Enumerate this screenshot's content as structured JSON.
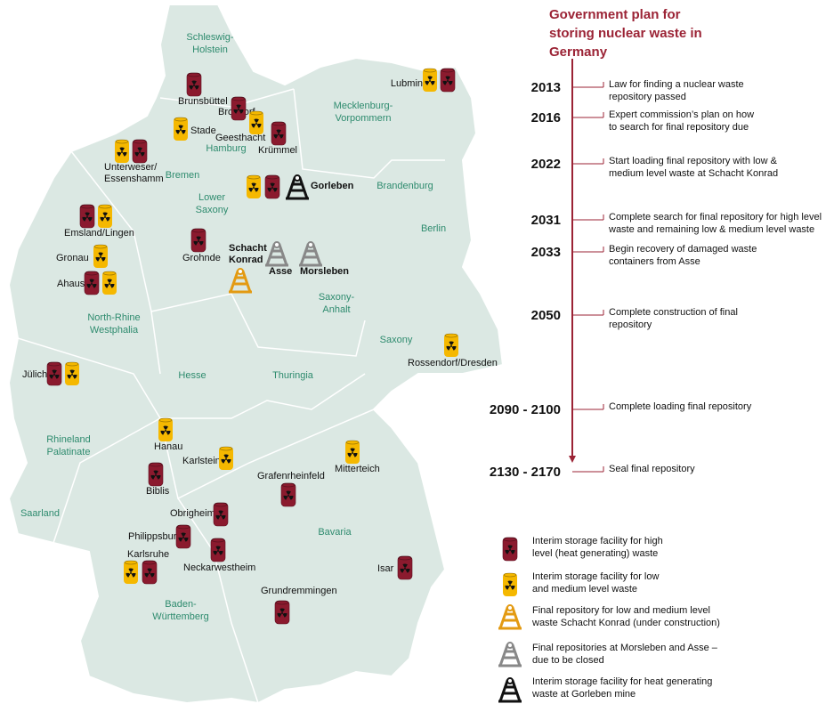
{
  "title": {
    "lines": [
      "Government plan for",
      "storing nuclear waste in",
      "Germany"
    ]
  },
  "timeline": [
    {
      "year": "2013",
      "lines": [
        "Law for finding a nuclear waste",
        "repository passed"
      ]
    },
    {
      "year": "2016",
      "lines": [
        "Expert commission’s plan on how",
        "to search for final repository due"
      ]
    },
    {
      "year": "2022",
      "lines": [
        "Start loading final repository with low &",
        "medium level waste at Schacht Konrad"
      ]
    },
    {
      "year": "2031",
      "lines": [
        "Complete search for final repository for high level",
        "waste and remaining low & medium level waste"
      ]
    },
    {
      "year": "2033",
      "lines": [
        "Begin recovery of damaged waste",
        "containers from Asse"
      ]
    },
    {
      "year": "2050",
      "lines": [
        "Complete construction of final",
        "repository"
      ]
    },
    {
      "year": "2090 - 2100",
      "lines": [
        "Complete loading final repository"
      ]
    },
    {
      "year": "2130 - 2170",
      "lines": [
        "Seal final repository"
      ]
    }
  ],
  "states": [
    {
      "lines": [
        "Schleswig-",
        "Holstein"
      ]
    },
    {
      "lines": [
        "Mecklenburg-",
        "Vorpommern"
      ]
    },
    {
      "lines": [
        "Hamburg"
      ]
    },
    {
      "lines": [
        "Bremen"
      ]
    },
    {
      "lines": [
        "Lower",
        "Saxony"
      ]
    },
    {
      "lines": [
        "Brandenburg"
      ]
    },
    {
      "lines": [
        "Berlin"
      ]
    },
    {
      "lines": [
        "Saxony-",
        "Anhalt"
      ]
    },
    {
      "lines": [
        "North-Rhine",
        "Westphalia"
      ]
    },
    {
      "lines": [
        "Saxony"
      ]
    },
    {
      "lines": [
        "Hesse"
      ]
    },
    {
      "lines": [
        "Thuringia"
      ]
    },
    {
      "lines": [
        "Rhineland",
        "Palatinate"
      ]
    },
    {
      "lines": [
        "Saarland"
      ]
    },
    {
      "lines": [
        "Bavaria"
      ]
    },
    {
      "lines": [
        "Baden-",
        "Württemberg"
      ]
    }
  ],
  "sites": [
    {
      "lines": [
        "Lubmin"
      ]
    },
    {
      "lines": [
        "Brunsbüttel"
      ]
    },
    {
      "lines": [
        "Brokdorf"
      ]
    },
    {
      "lines": [
        "Stade"
      ]
    },
    {
      "lines": [
        "Geesthacht"
      ]
    },
    {
      "lines": [
        "Krümmel"
      ]
    },
    {
      "lines": [
        "Unterweser/",
        "Essenshamm"
      ]
    },
    {
      "lines": [
        "Gorleben"
      ]
    },
    {
      "lines": [
        "Emsland/Lingen"
      ]
    },
    {
      "lines": [
        "Grohnde"
      ]
    },
    {
      "lines": [
        "Schacht",
        "Konrad"
      ]
    },
    {
      "lines": [
        "Asse"
      ]
    },
    {
      "lines": [
        "Morsleben"
      ]
    },
    {
      "lines": [
        "Gronau"
      ]
    },
    {
      "lines": [
        "Ahaus"
      ]
    },
    {
      "lines": [
        "Jülich"
      ]
    },
    {
      "lines": [
        "Rossendorf/Dresden"
      ]
    },
    {
      "lines": [
        "Hanau"
      ]
    },
    {
      "lines": [
        "Karlstein"
      ]
    },
    {
      "lines": [
        "Mitterteich"
      ]
    },
    {
      "lines": [
        "Biblis"
      ]
    },
    {
      "lines": [
        "Grafenrheinfeld"
      ]
    },
    {
      "lines": [
        "Obrigheim"
      ]
    },
    {
      "lines": [
        "Philippsburg"
      ]
    },
    {
      "lines": [
        "Neckarwestheim"
      ]
    },
    {
      "lines": [
        "Karlsruhe"
      ]
    },
    {
      "lines": [
        "Isar"
      ]
    },
    {
      "lines": [
        "Grundremmingen"
      ]
    }
  ],
  "legend": [
    {
      "lines": [
        "Interim storage facility for high",
        "level (heat generating) waste"
      ]
    },
    {
      "lines": [
        "Interim storage facility for low",
        "and medium level waste"
      ]
    },
    {
      "lines": [
        "Final repository for low and medium level",
        "waste Schacht Konrad (under construction)"
      ]
    },
    {
      "lines": [
        "Final repositories at Morsleben and Asse –",
        "due to be closed"
      ]
    },
    {
      "lines": [
        "Interim storage facility for heat generating",
        "waste at Gorleben mine"
      ]
    }
  ]
}
